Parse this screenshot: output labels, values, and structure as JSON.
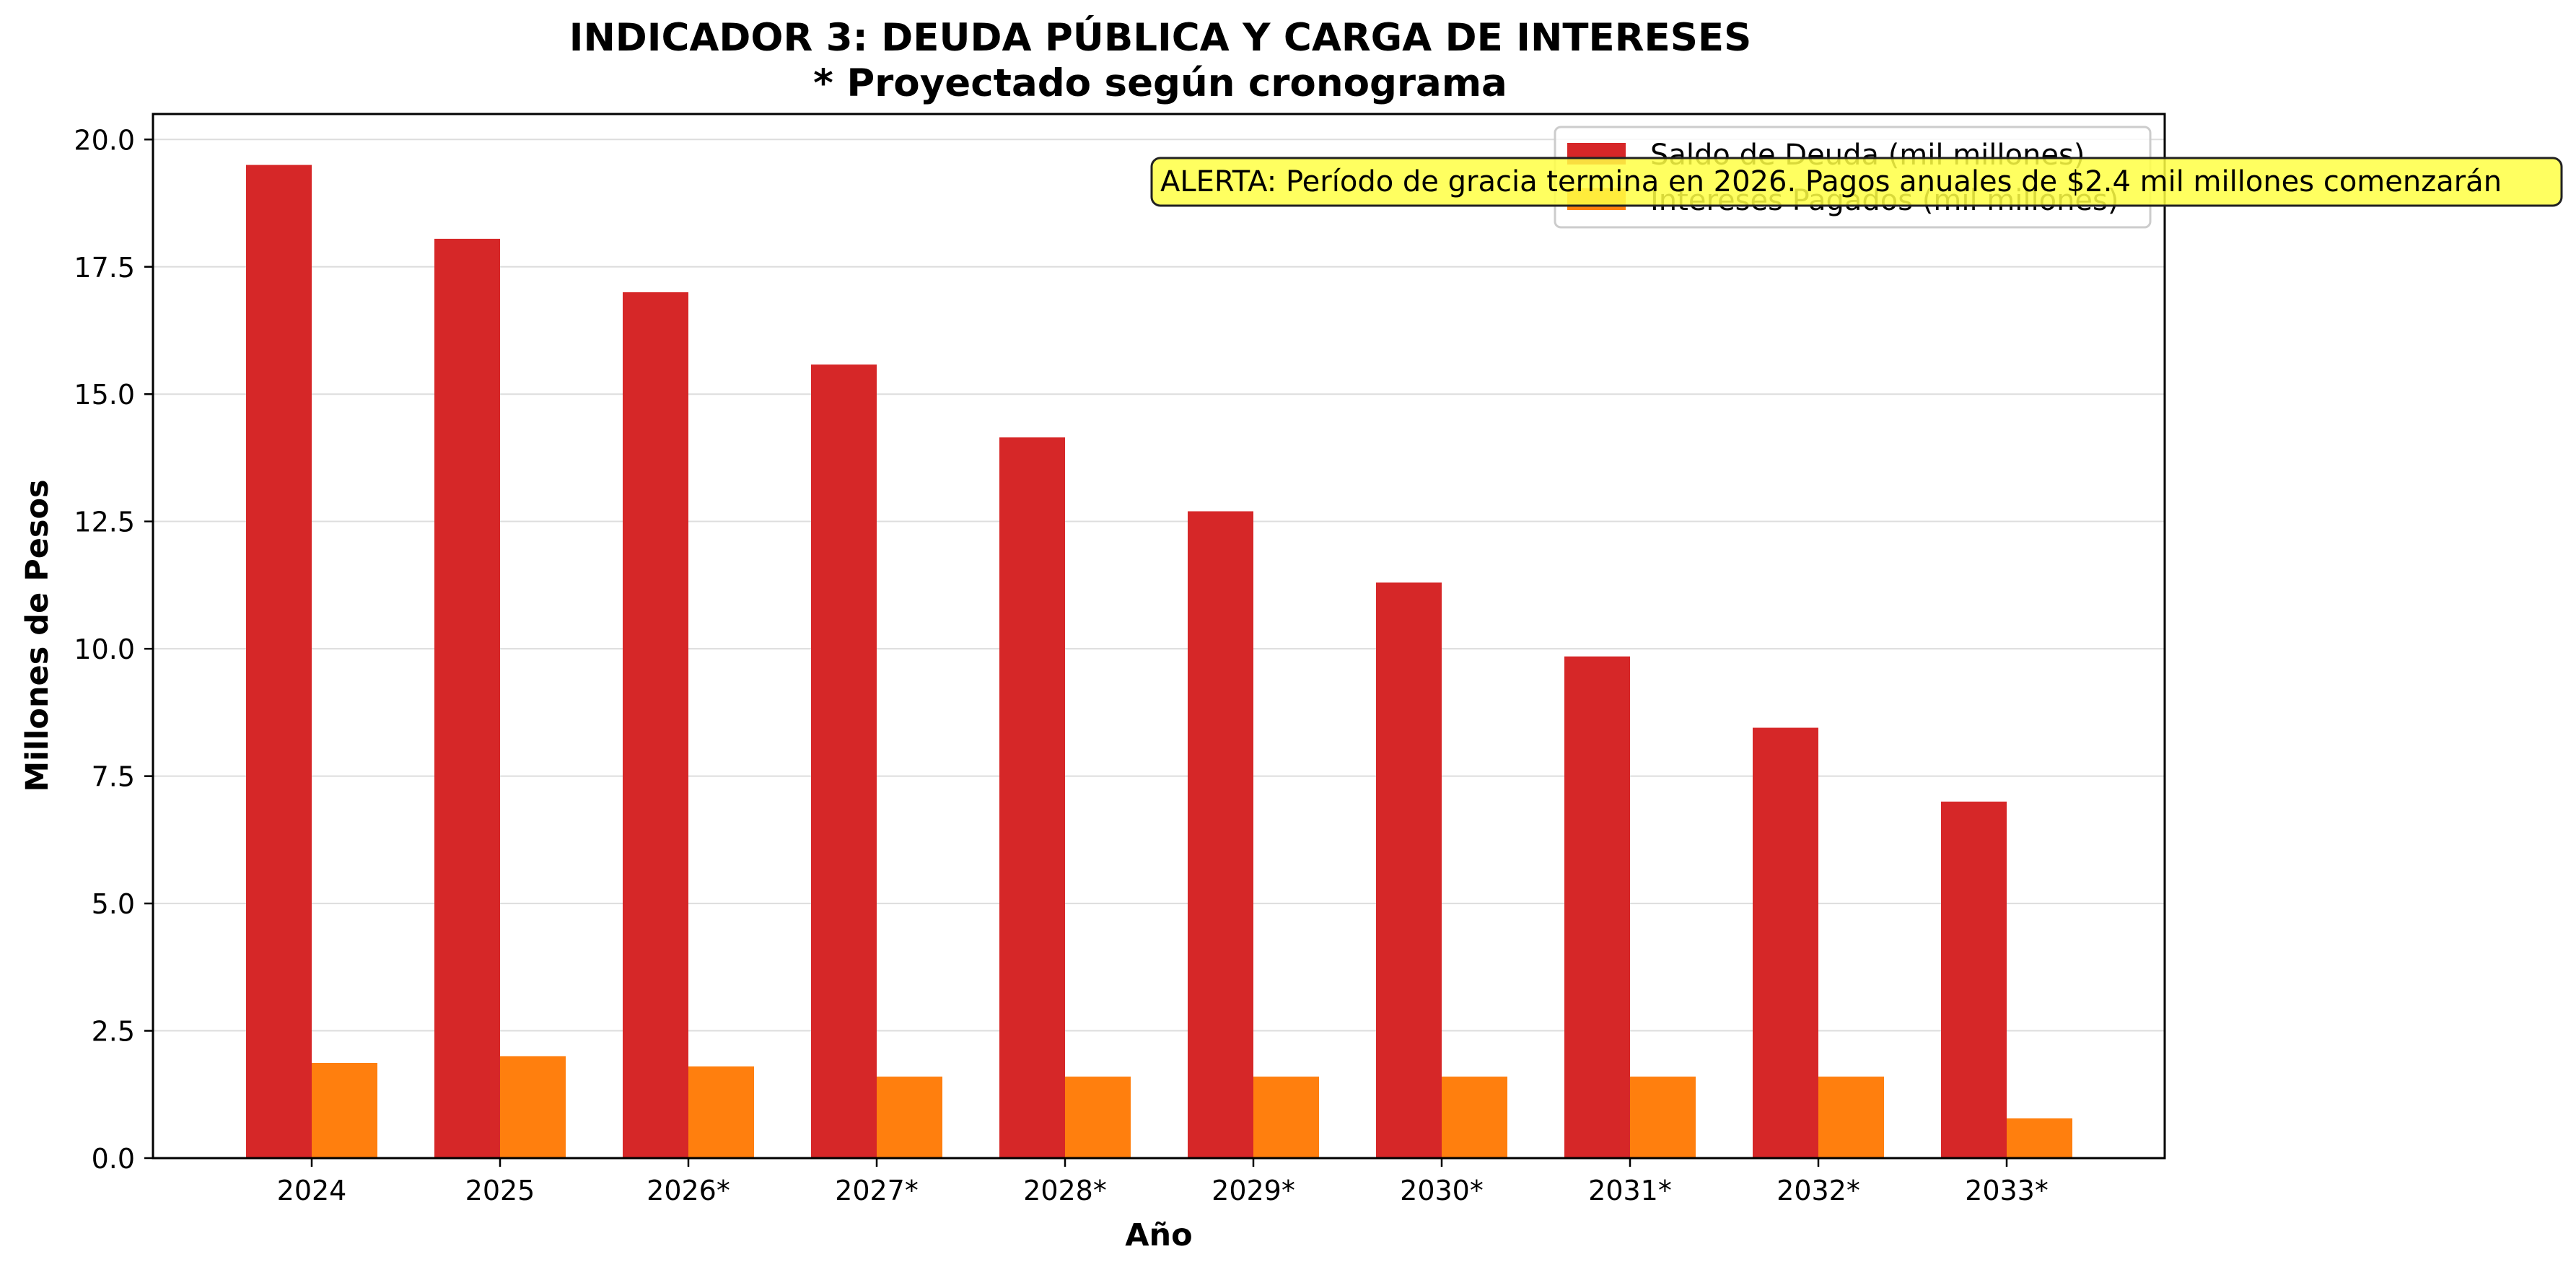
{
  "chart_data": {
    "type": "bar",
    "title": "INDICADOR 3: DEUDA PÚBLICA Y CARGA DE INTERESES",
    "subtitle": "* Proyectado según cronograma",
    "xlabel": "Año",
    "ylabel": "Millones de Pesos",
    "ylim": [
      0,
      20.5
    ],
    "yticks": [
      "0.0",
      "2.5",
      "5.0",
      "7.5",
      "10.0",
      "12.5",
      "15.0",
      "17.5",
      "20.0"
    ],
    "grid": "horizontal",
    "legend_position": "top-right",
    "categories": [
      "2024",
      "2025",
      "2026*",
      "2027*",
      "2028*",
      "2029*",
      "2030*",
      "2031*",
      "2032*",
      "2033*"
    ],
    "series": [
      {
        "name": "Saldo de Deuda (mil millones)",
        "color": "#d62728",
        "values": [
          19.5,
          18.05,
          17.0,
          15.58,
          14.15,
          12.7,
          11.3,
          9.85,
          8.45,
          7.0
        ]
      },
      {
        "name": "Intereses Pagados (mil millones)",
        "color": "#ff7f0e",
        "values": [
          1.87,
          2.0,
          1.8,
          1.6,
          1.6,
          1.6,
          1.6,
          1.6,
          1.6,
          0.78
        ]
      }
    ],
    "annotation": {
      "text": "ALERTA: Período de gracia termina en 2026. Pagos anuales de $2.4 mil millones comenzarán",
      "background": "#ffff44"
    }
  }
}
